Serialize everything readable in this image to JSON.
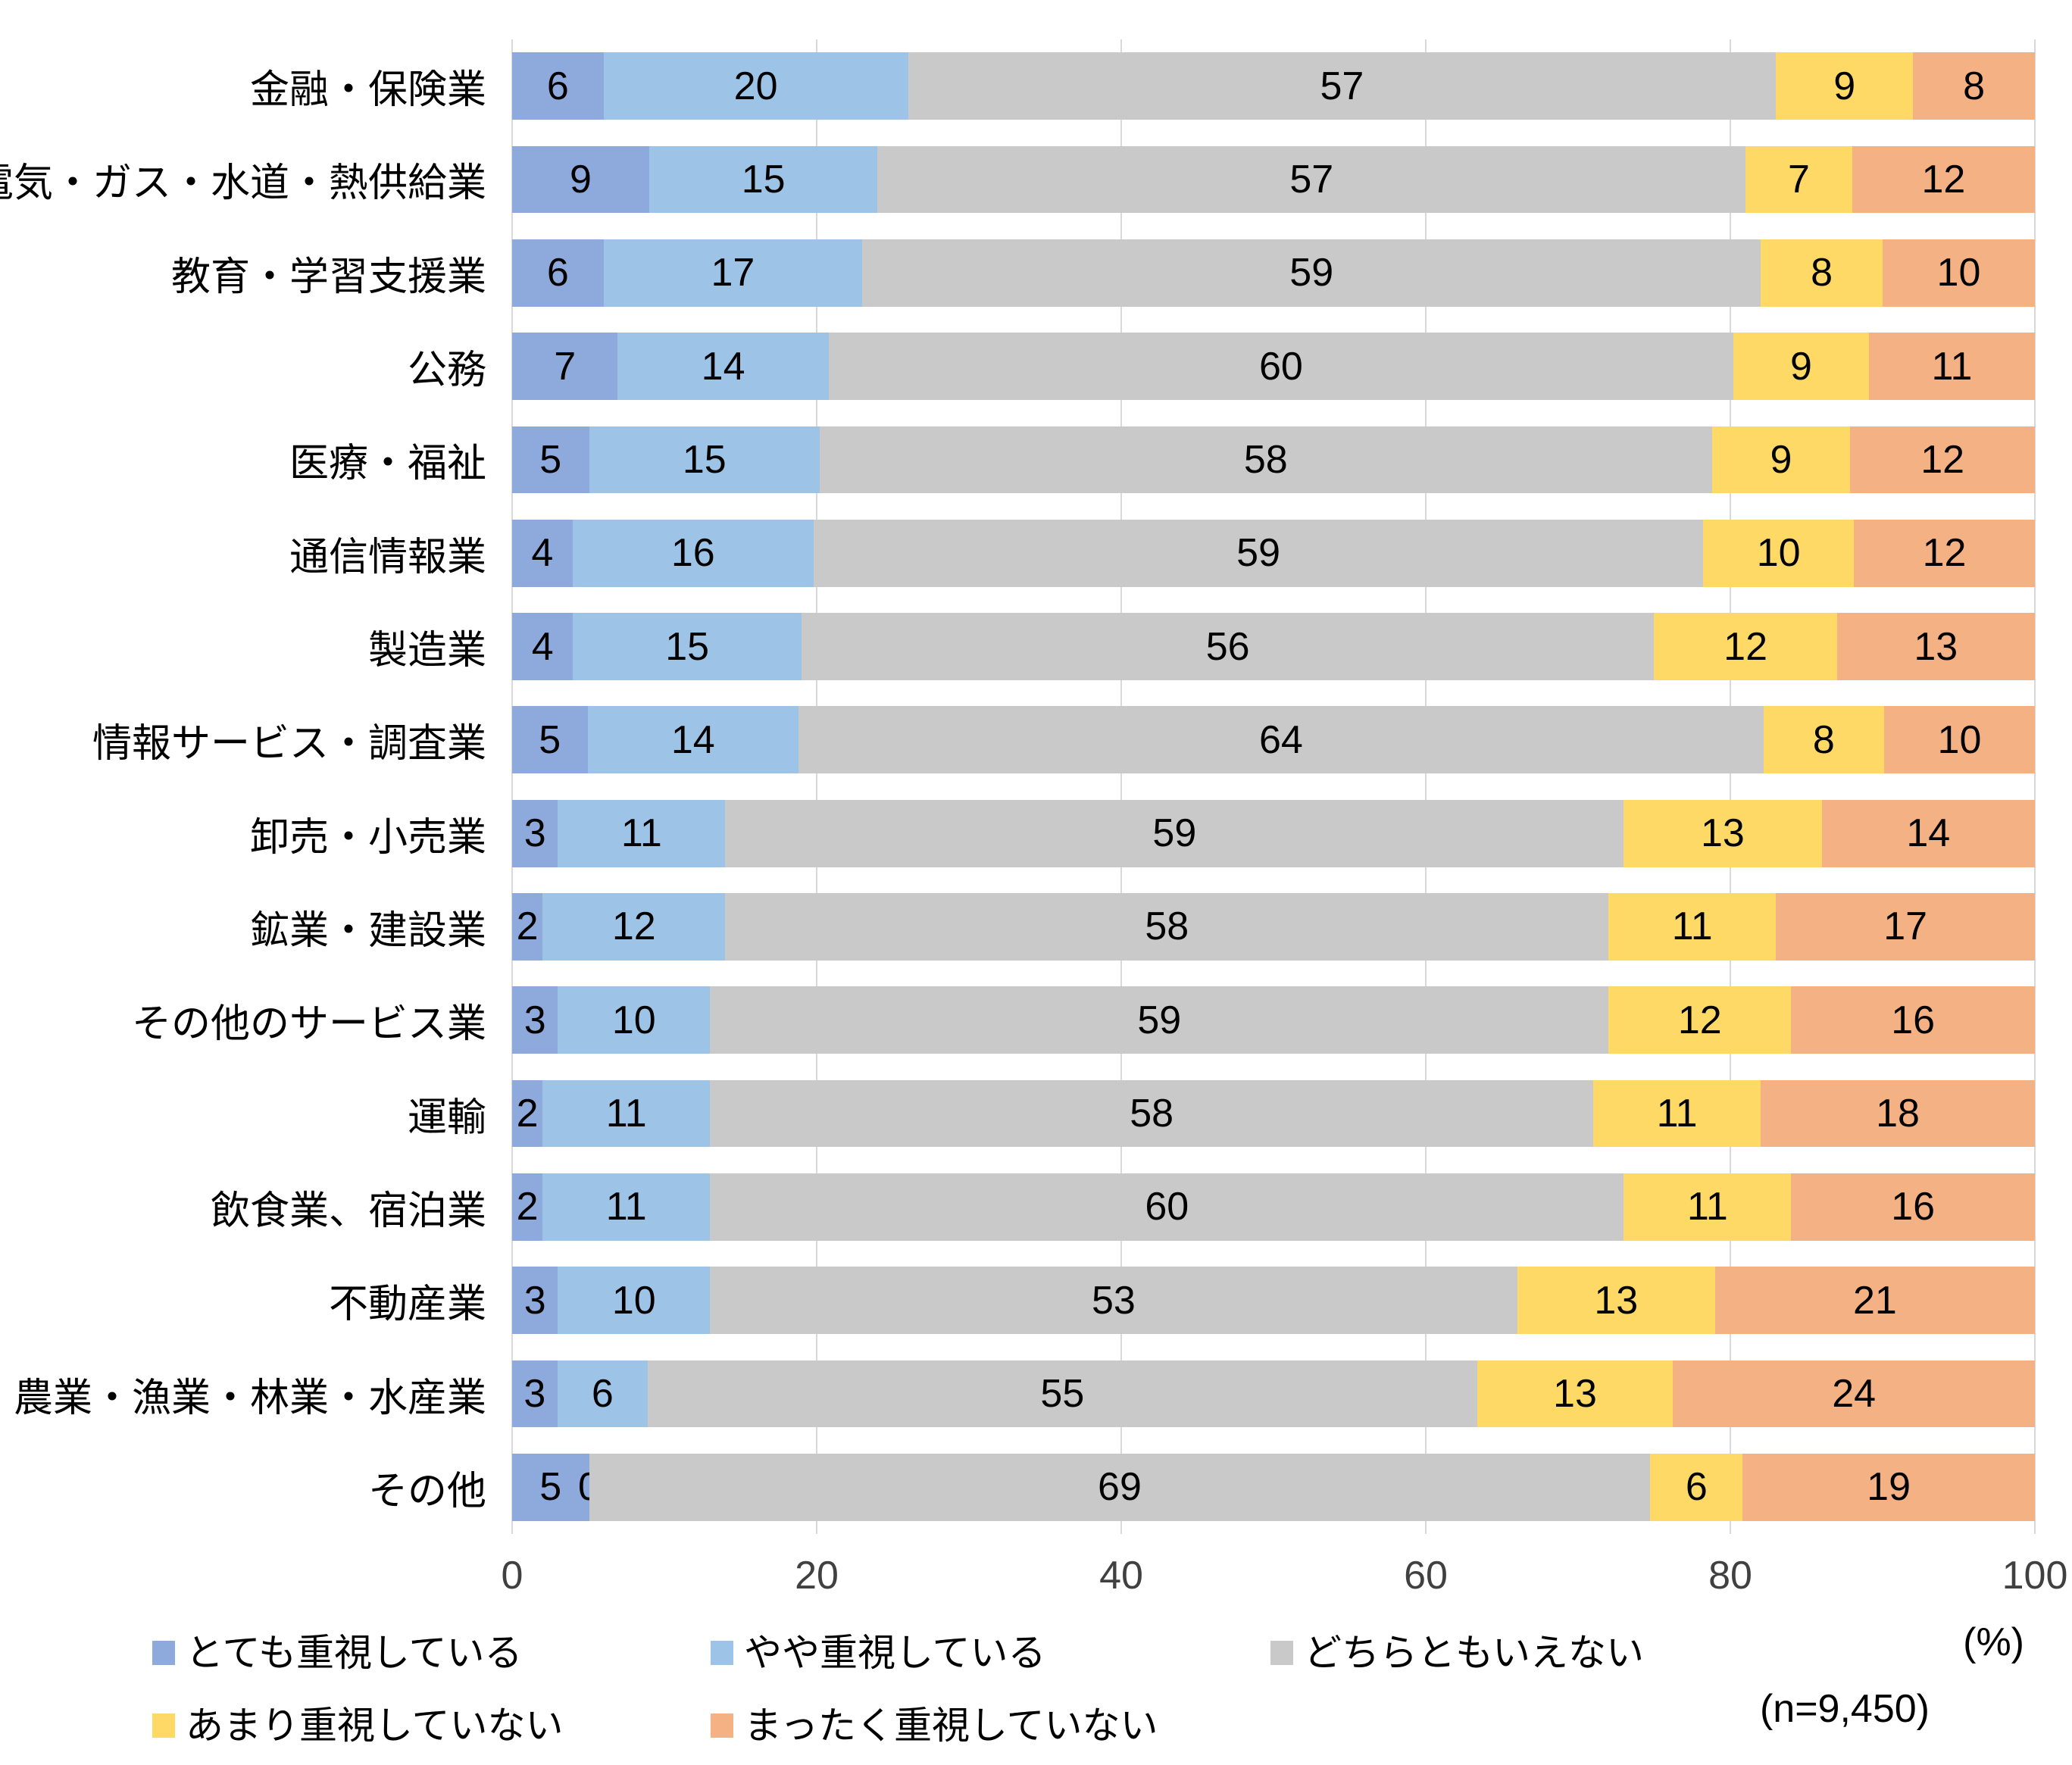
{
  "chart_data": {
    "type": "bar",
    "orientation": "horizontal",
    "stacked": true,
    "title": "",
    "unit_label": "(%)",
    "sample_label": "(n=9,450)",
    "xlim": [
      0,
      100
    ],
    "x_ticks": [
      0,
      20,
      40,
      60,
      80,
      100
    ],
    "grid": true,
    "gridline_color": "#D9D9D9",
    "categories": [
      "金融・保険業",
      "電気・ガス・水道・熱供給業",
      "教育・学習支援業",
      "公務",
      "医療・福祉",
      "通信情報業",
      "製造業",
      "情報サービス・調査業",
      "卸売・小売業",
      "鉱業・建設業",
      "その他のサービス業",
      "運輸",
      "飲食業、宿泊業",
      "不動産業",
      "農業・漁業・林業・水産業",
      "その他"
    ],
    "series": [
      {
        "name": "とても重視している",
        "color": "#8EA9DB",
        "values": [
          6,
          9,
          6,
          7,
          5,
          4,
          4,
          5,
          3,
          2,
          3,
          2,
          2,
          3,
          3,
          5
        ]
      },
      {
        "name": "やや重視している",
        "color": "#9DC3E6",
        "values": [
          20,
          15,
          17,
          14,
          15,
          16,
          15,
          14,
          11,
          12,
          10,
          11,
          11,
          10,
          6,
          0
        ]
      },
      {
        "name": "どちらともいえない",
        "color": "#C9C9C9",
        "values": [
          57,
          57,
          59,
          60,
          58,
          59,
          56,
          64,
          59,
          58,
          59,
          58,
          60,
          53,
          55,
          69
        ]
      },
      {
        "name": "あまり重視していない",
        "color": "#FFD966",
        "values": [
          9,
          7,
          8,
          9,
          9,
          10,
          12,
          8,
          13,
          11,
          12,
          11,
          11,
          13,
          13,
          6
        ]
      },
      {
        "name": "まったく重視していない",
        "color": "#F4B183",
        "values": [
          8,
          12,
          10,
          11,
          12,
          12,
          13,
          10,
          14,
          17,
          16,
          18,
          16,
          21,
          24,
          19
        ]
      }
    ],
    "legend_rows": [
      [
        "とても重視している",
        "やや重視している",
        "どちらともいえない"
      ],
      [
        "あまり重視していない",
        "まったく重視していない"
      ]
    ]
  }
}
